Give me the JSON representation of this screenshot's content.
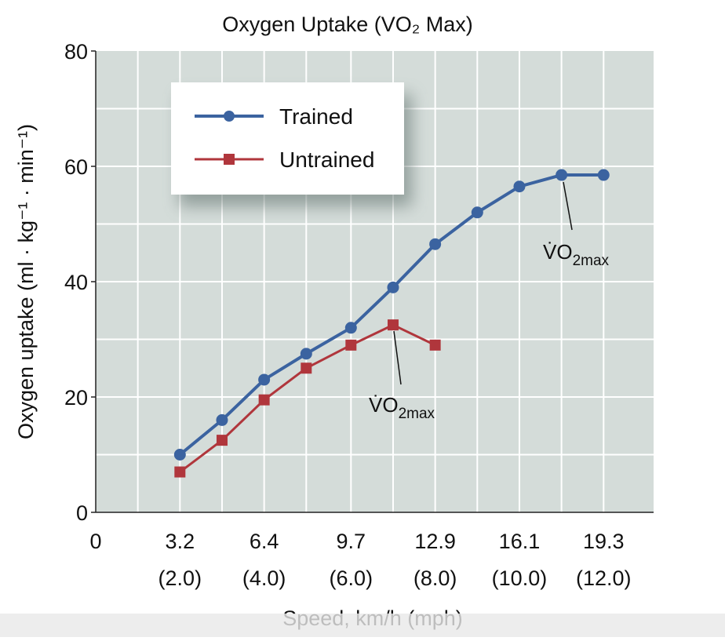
{
  "chart_data": {
    "type": "line",
    "title": "Oxygen Uptake (VO₂ Max)",
    "x_label": "Speed, km/h (mph)",
    "y_label": "Oxygen uptake (ml · kg⁻¹ · min⁻¹)",
    "x": [
      3.2,
      4.8,
      6.4,
      8.0,
      9.7,
      11.3,
      12.9,
      14.5,
      16.1,
      17.7,
      19.3
    ],
    "series": [
      {
        "name": "Trained",
        "color": "#3b63a0",
        "marker": "circle",
        "values": [
          10,
          16,
          23,
          27.5,
          32,
          39,
          46.5,
          52,
          56.5,
          58.5,
          58.5
        ]
      },
      {
        "name": "Untrained",
        "color": "#b0363c",
        "marker": "square",
        "values": [
          7,
          12.5,
          19.5,
          25,
          29,
          32.5,
          29,
          null,
          null,
          null,
          null
        ]
      }
    ],
    "xlim": [
      0,
      21.2
    ],
    "ylim": [
      0,
      80
    ],
    "xticks": [
      0,
      3.2,
      6.4,
      9.7,
      12.9,
      16.1,
      19.3
    ],
    "xtick_sublabels": [
      null,
      "(2.0)",
      "(4.0)",
      "(6.0)",
      "(8.0)",
      "(10.0)",
      "(12.0)"
    ],
    "yticks": [
      0,
      20,
      40,
      60,
      80
    ],
    "xgrid": [
      1.6,
      3.2,
      4.8,
      6.4,
      8.0,
      9.7,
      11.3,
      12.9,
      14.5,
      16.1,
      17.7,
      19.3
    ],
    "ygrid": [
      10,
      20,
      30,
      40,
      50,
      60,
      70
    ],
    "grid": true,
    "legend": "upper left",
    "annotations": [
      {
        "text": "V̇O",
        "subscript": "2max"
      },
      {
        "text": "V̇O",
        "subscript": "2max"
      }
    ]
  }
}
